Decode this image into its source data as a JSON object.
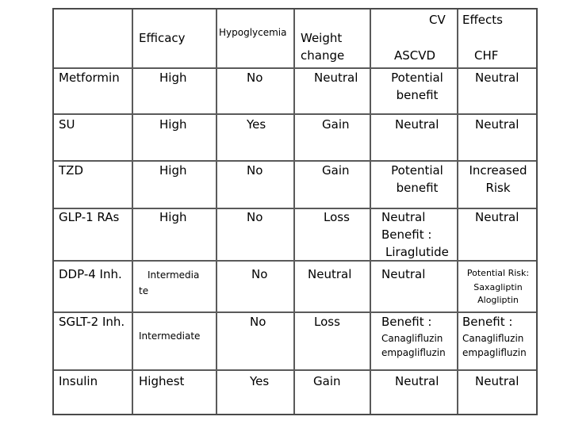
{
  "header": {
    "efficacy": "Efficacy",
    "hypoglycemia": "Hypoglycemia",
    "weight_change": [
      "Weight",
      "change"
    ],
    "cv": "CV",
    "effects": "Effects",
    "ascvd": "ASCVD",
    "chf": "CHF"
  },
  "rows": [
    {
      "drug": "Metformin",
      "efficacy": "High",
      "hypo": "No",
      "weight": "Neutral",
      "ascvd": [
        "Potential",
        "benefit"
      ],
      "chf": "Neutral"
    },
    {
      "drug": "SU",
      "efficacy": "High",
      "hypo": "Yes",
      "weight": "Gain",
      "ascvd": "Neutral",
      "chf": "Neutral"
    },
    {
      "drug": "TZD",
      "efficacy": "High",
      "hypo": "No",
      "weight": "Gain",
      "ascvd": [
        "Potential",
        "benefit"
      ],
      "chf": [
        "Increased",
        "Risk"
      ]
    },
    {
      "drug": "GLP-1 RAs",
      "efficacy": "High",
      "hypo": "No",
      "weight": "Loss",
      "ascvd": [
        "Neutral",
        "Benefit :",
        "Liraglutide"
      ],
      "chf": "Neutral"
    },
    {
      "drug": "DDP-4 Inh.",
      "efficacy": [
        "Intermedia",
        "te"
      ],
      "hypo": "No",
      "weight": "Neutral",
      "ascvd": "Neutral",
      "chf": [
        "Potential Risk:",
        "Saxagliptin",
        "Alogliptin"
      ]
    },
    {
      "drug": "SGLT-2 Inh.",
      "efficacy": "Intermediate",
      "hypo": "No",
      "weight": "Loss",
      "ascvd": [
        "Benefit :",
        "Canaglifluzin",
        "empaglifluzin"
      ],
      "chf": [
        "Benefit :",
        "Canaglifluzin",
        "empaglifluzin"
      ]
    },
    {
      "drug": "Insulin",
      "efficacy": "Highest",
      "hypo": "Yes",
      "weight": "Gain",
      "ascvd": "Neutral",
      "chf": "Neutral"
    }
  ]
}
